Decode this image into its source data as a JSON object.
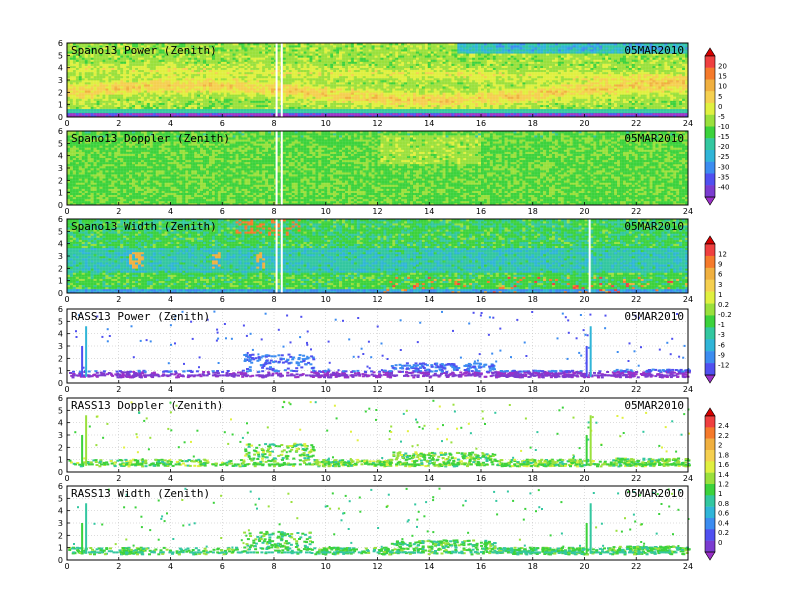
{
  "chart_data": [
    {
      "type": "heatmap",
      "title": "Spano13 Power (Zenith)",
      "date": "05MAR2010",
      "xlim": [
        0,
        24
      ],
      "ylim": [
        0,
        6
      ],
      "x_ticks": [
        "0",
        "2",
        "4",
        "6",
        "8",
        "10",
        "12",
        "14",
        "16",
        "18",
        "20",
        "22",
        "24"
      ],
      "y_ticks": [
        "0",
        "1",
        "2",
        "3",
        "4",
        "5",
        "6"
      ],
      "gaps": [
        8.1,
        8.3
      ],
      "pattern": "spano_power",
      "colorbar": {
        "group": 1,
        "labels": [
          "20",
          "15",
          "10",
          "5",
          "0",
          "-5",
          "-10",
          "-15",
          "-20",
          "-25",
          "-30",
          "-35",
          "-40"
        ],
        "colors": [
          "#d50000",
          "#ef4040",
          "#f57a2b",
          "#f0b040",
          "#f5d050",
          "#e0f040",
          "#9ae03c",
          "#3cd23c",
          "#33c7a0",
          "#30b5d8",
          "#3c8cf0",
          "#5050f0",
          "#7b3cd0",
          "#9b30c8"
        ]
      }
    },
    {
      "type": "heatmap",
      "title": "Spano13 Doppler (Zenith)",
      "date": "05MAR2010",
      "xlim": [
        0,
        24
      ],
      "ylim": [
        0,
        6
      ],
      "x_ticks": [
        "0",
        "2",
        "4",
        "6",
        "8",
        "10",
        "12",
        "14",
        "16",
        "18",
        "20",
        "22",
        "24"
      ],
      "y_ticks": [
        "0",
        "1",
        "2",
        "3",
        "4",
        "5",
        "6"
      ],
      "gaps": [
        8.1,
        8.3
      ],
      "pattern": "spano_doppler"
    },
    {
      "type": "heatmap",
      "title": "Spano13 Width (Zenith)",
      "date": "05MAR2010",
      "xlim": [
        0,
        24
      ],
      "ylim": [
        0,
        6
      ],
      "x_ticks": [
        "0",
        "2",
        "4",
        "6",
        "8",
        "10",
        "12",
        "14",
        "16",
        "18",
        "20",
        "22",
        "24"
      ],
      "y_ticks": [
        "0",
        "1",
        "2",
        "3",
        "4",
        "5",
        "6"
      ],
      "gaps": [
        8.1,
        8.3,
        20.2
      ],
      "pattern": "spano_width",
      "colorbar": {
        "group": 2,
        "labels": [
          "12",
          "9",
          "6",
          "3",
          "1",
          "0.2",
          "-0.2",
          "-1",
          "-3",
          "-6",
          "-9",
          "-12"
        ],
        "colors": [
          "#d50000",
          "#ef4040",
          "#f57a2b",
          "#f0b040",
          "#f5d050",
          "#e0f040",
          "#9ae03c",
          "#3cd23c",
          "#33c7a0",
          "#30b5d8",
          "#3c8cf0",
          "#5050f0",
          "#9b30c8"
        ]
      }
    },
    {
      "type": "scatter",
      "title": "RASS13 Power (Zenith)",
      "date": "05MAR2010",
      "xlim": [
        0,
        24
      ],
      "ylim": [
        0,
        6
      ],
      "x_ticks": [
        "0",
        "2",
        "4",
        "6",
        "8",
        "10",
        "12",
        "14",
        "16",
        "18",
        "20",
        "22",
        "24"
      ],
      "y_ticks": [
        "0",
        "1",
        "2",
        "3",
        "4",
        "5",
        "6"
      ],
      "vertical_streaks": [
        0.7,
        20.2
      ],
      "pattern": "rass_power"
    },
    {
      "type": "scatter",
      "title": "RASS13 Doppler (Zenith)",
      "date": "05MAR2010",
      "xlim": [
        0,
        24
      ],
      "ylim": [
        0,
        6
      ],
      "x_ticks": [
        "0",
        "2",
        "4",
        "6",
        "8",
        "10",
        "12",
        "14",
        "16",
        "18",
        "20",
        "22",
        "24"
      ],
      "y_ticks": [
        "0",
        "1",
        "2",
        "3",
        "4",
        "5",
        "6"
      ],
      "vertical_streaks": [
        0.7,
        20.2
      ],
      "pattern": "rass_doppler",
      "colorbar": {
        "group": 3,
        "labels": [
          "2.4",
          "2.2",
          "2",
          "1.8",
          "1.6",
          "1.4",
          "1.2",
          "1",
          "0.8",
          "0.6",
          "0.4",
          "0.2",
          "0"
        ],
        "colors": [
          "#d50000",
          "#ef4040",
          "#f57a2b",
          "#f0b040",
          "#f5d050",
          "#e0f040",
          "#9ae03c",
          "#3cd23c",
          "#33c7a0",
          "#30b5d8",
          "#3c8cf0",
          "#5050f0",
          "#7b3cd0",
          "#9b30c8"
        ]
      }
    },
    {
      "type": "scatter",
      "title": "RASS13 Width (Zenith)",
      "date": "05MAR2010",
      "xlim": [
        0,
        24
      ],
      "ylim": [
        0,
        6
      ],
      "x_ticks": [
        "0",
        "2",
        "4",
        "6",
        "8",
        "10",
        "12",
        "14",
        "16",
        "18",
        "20",
        "22",
        "24"
      ],
      "y_ticks": [
        "0",
        "1",
        "2",
        "3",
        "4",
        "5",
        "6"
      ],
      "vertical_streaks": [
        0.7,
        20.2
      ],
      "pattern": "rass_width"
    }
  ]
}
